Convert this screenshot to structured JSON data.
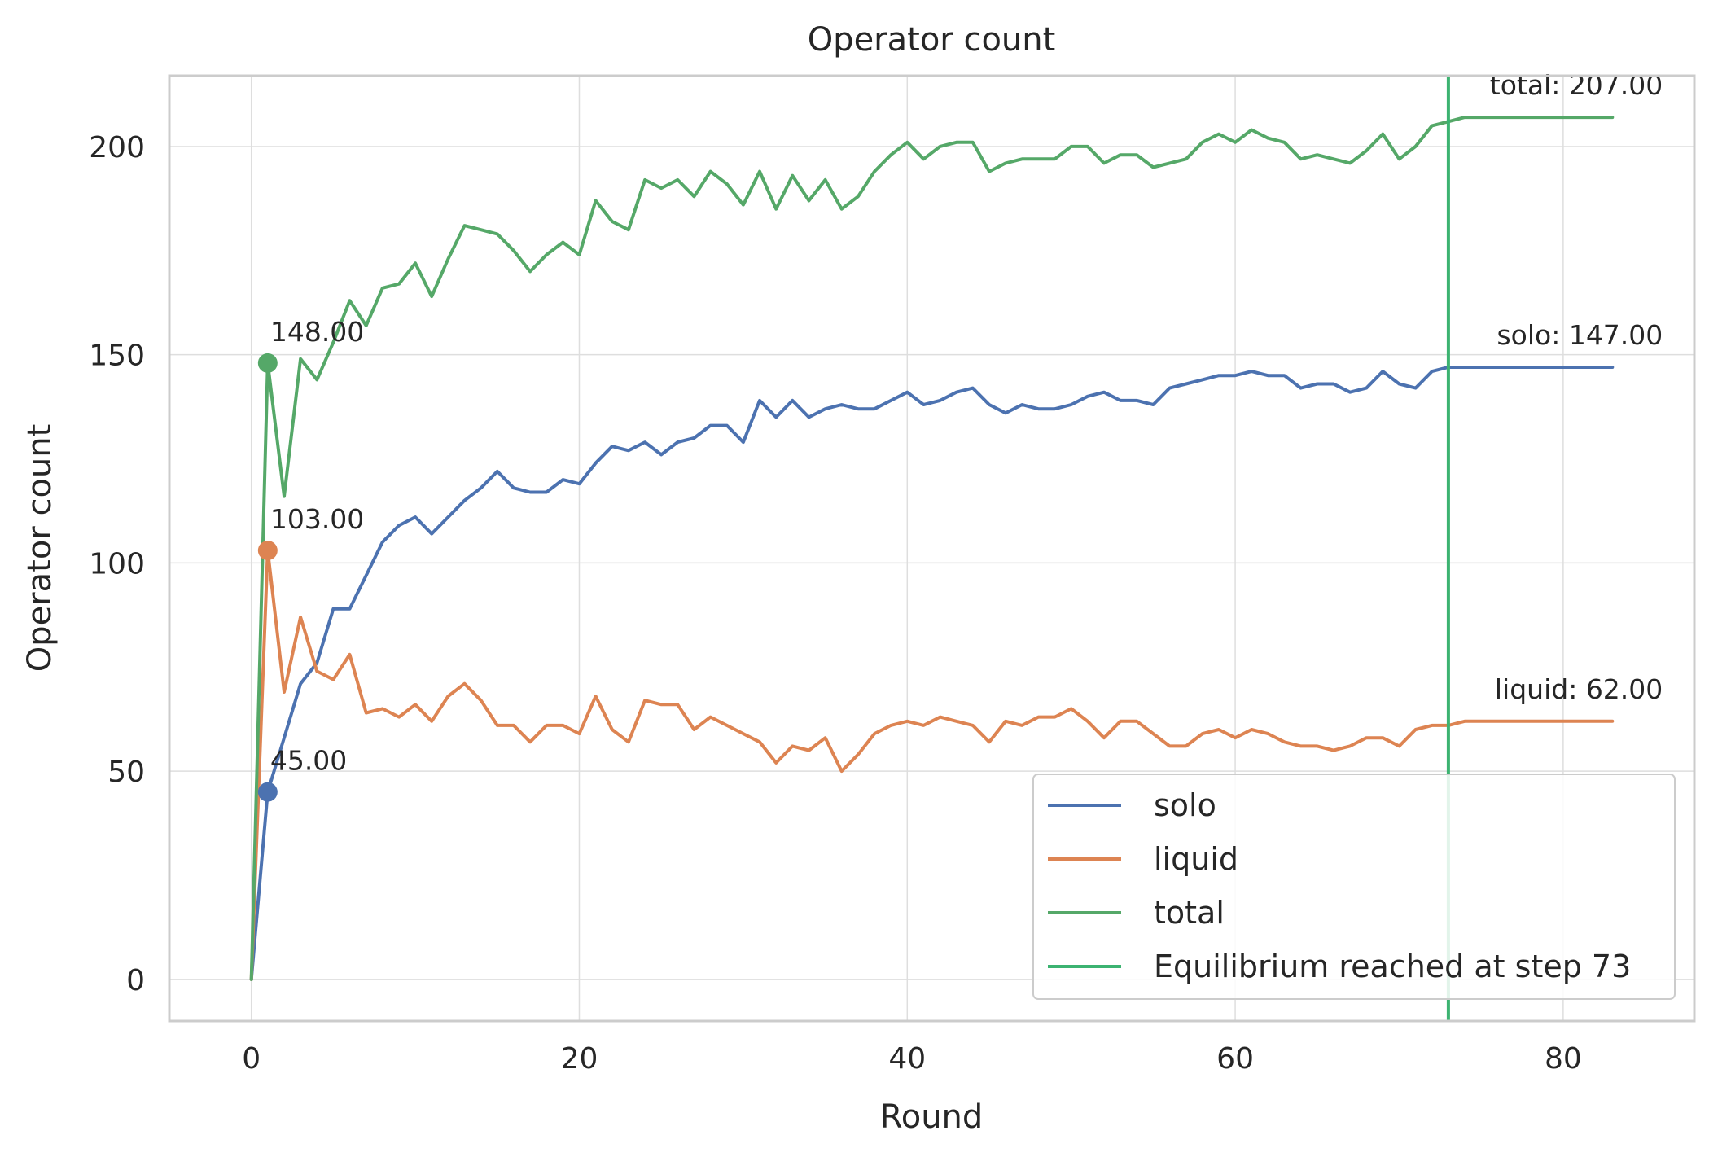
{
  "chart_data": {
    "type": "line",
    "title": "Operator count",
    "xlabel": "Round",
    "ylabel": "Operator count",
    "xlim": [
      -5,
      88
    ],
    "ylim": [
      -10,
      217
    ],
    "xticks": [
      0,
      20,
      40,
      60,
      80
    ],
    "yticks": [
      0,
      50,
      100,
      150,
      200
    ],
    "grid": true,
    "legend_position": "lower right",
    "series": [
      {
        "name": "solo",
        "color": "#4c72b0",
        "x": [
          0,
          1,
          2,
          3,
          4,
          5,
          6,
          7,
          8,
          9,
          10,
          11,
          12,
          13,
          14,
          15,
          16,
          17,
          18,
          19,
          20,
          21,
          22,
          23,
          24,
          25,
          26,
          27,
          28,
          29,
          30,
          31,
          32,
          33,
          34,
          35,
          36,
          37,
          38,
          39,
          40,
          41,
          42,
          43,
          44,
          45,
          46,
          47,
          48,
          49,
          50,
          51,
          52,
          53,
          54,
          55,
          56,
          57,
          58,
          59,
          60,
          61,
          62,
          63,
          64,
          65,
          66,
          67,
          68,
          69,
          70,
          71,
          72,
          73,
          74,
          75,
          76,
          77,
          78,
          79,
          80,
          81,
          82,
          83
        ],
        "y": [
          0,
          45,
          58,
          71,
          76,
          89,
          89,
          97,
          105,
          109,
          111,
          107,
          111,
          115,
          118,
          122,
          118,
          117,
          117,
          120,
          119,
          124,
          128,
          127,
          129,
          126,
          129,
          130,
          133,
          133,
          129,
          139,
          135,
          139,
          135,
          137,
          138,
          137,
          137,
          139,
          141,
          138,
          139,
          141,
          142,
          138,
          136,
          138,
          137,
          137,
          138,
          140,
          141,
          139,
          139,
          138,
          142,
          143,
          144,
          145,
          145,
          146,
          145,
          145,
          142,
          143,
          143,
          141,
          142,
          146,
          143,
          142,
          146,
          147,
          147,
          147,
          147,
          147,
          147,
          147,
          147,
          147,
          147,
          147
        ]
      },
      {
        "name": "liquid",
        "color": "#dd8452",
        "x": [
          0,
          1,
          2,
          3,
          4,
          5,
          6,
          7,
          8,
          9,
          10,
          11,
          12,
          13,
          14,
          15,
          16,
          17,
          18,
          19,
          20,
          21,
          22,
          23,
          24,
          25,
          26,
          27,
          28,
          29,
          30,
          31,
          32,
          33,
          34,
          35,
          36,
          37,
          38,
          39,
          40,
          41,
          42,
          43,
          44,
          45,
          46,
          47,
          48,
          49,
          50,
          51,
          52,
          53,
          54,
          55,
          56,
          57,
          58,
          59,
          60,
          61,
          62,
          63,
          64,
          65,
          66,
          67,
          68,
          69,
          70,
          71,
          72,
          73,
          74,
          75,
          76,
          77,
          78,
          79,
          80,
          81,
          82,
          83
        ],
        "y": [
          0,
          103,
          69,
          87,
          74,
          72,
          78,
          64,
          65,
          63,
          66,
          62,
          68,
          71,
          67,
          61,
          61,
          57,
          61,
          61,
          59,
          68,
          60,
          57,
          67,
          66,
          66,
          60,
          63,
          61,
          59,
          57,
          52,
          56,
          55,
          58,
          50,
          54,
          59,
          61,
          62,
          61,
          63,
          62,
          61,
          57,
          62,
          61,
          63,
          63,
          65,
          62,
          58,
          62,
          62,
          59,
          56,
          56,
          59,
          60,
          58,
          60,
          59,
          57,
          56,
          56,
          55,
          56,
          58,
          58,
          56,
          60,
          61,
          61,
          62,
          62,
          62,
          62,
          62,
          62,
          62,
          62,
          62,
          62
        ]
      },
      {
        "name": "total",
        "color": "#55a868",
        "x": [
          0,
          1,
          2,
          3,
          4,
          5,
          6,
          7,
          8,
          9,
          10,
          11,
          12,
          13,
          14,
          15,
          16,
          17,
          18,
          19,
          20,
          21,
          22,
          23,
          24,
          25,
          26,
          27,
          28,
          29,
          30,
          31,
          32,
          33,
          34,
          35,
          36,
          37,
          38,
          39,
          40,
          41,
          42,
          43,
          44,
          45,
          46,
          47,
          48,
          49,
          50,
          51,
          52,
          53,
          54,
          55,
          56,
          57,
          58,
          59,
          60,
          61,
          62,
          63,
          64,
          65,
          66,
          67,
          68,
          69,
          70,
          71,
          72,
          73,
          74,
          75,
          76,
          77,
          78,
          79,
          80,
          81,
          82,
          83
        ],
        "y": [
          0,
          148,
          116,
          149,
          144,
          153,
          163,
          157,
          166,
          167,
          172,
          164,
          173,
          181,
          180,
          179,
          175,
          170,
          174,
          177,
          174,
          187,
          182,
          180,
          192,
          190,
          192,
          188,
          194,
          191,
          186,
          194,
          185,
          193,
          187,
          192,
          185,
          188,
          194,
          198,
          201,
          197,
          200,
          201,
          201,
          194,
          196,
          197,
          197,
          197,
          200,
          200,
          196,
          198,
          198,
          195,
          196,
          197,
          201,
          203,
          201,
          204,
          202,
          201,
          197,
          198,
          197,
          196,
          199,
          203,
          197,
          200,
          205,
          206,
          207,
          207,
          207,
          207,
          207,
          207,
          207,
          207,
          207,
          207
        ]
      }
    ],
    "equilibrium": {
      "label": "Equilibrium reached at step 73",
      "x": 73,
      "color": "#3cb371"
    },
    "start_annotations": [
      {
        "series": "solo",
        "x": 1,
        "y": 45,
        "text": "45.00"
      },
      {
        "series": "liquid",
        "x": 1,
        "y": 103,
        "text": "103.00"
      },
      {
        "series": "total",
        "x": 1,
        "y": 148,
        "text": "148.00"
      }
    ],
    "end_annotations": [
      {
        "series": "total",
        "x": 83,
        "y": 207,
        "text": "total: 207.00"
      },
      {
        "series": "solo",
        "x": 83,
        "y": 147,
        "text": "solo: 147.00"
      },
      {
        "series": "liquid",
        "x": 83,
        "y": 62,
        "text": "liquid: 62.00"
      }
    ],
    "legend": [
      {
        "label": "solo",
        "color": "#4c72b0"
      },
      {
        "label": "liquid",
        "color": "#dd8452"
      },
      {
        "label": "total",
        "color": "#55a868"
      },
      {
        "label": "Equilibrium reached at step 73",
        "color": "#3cb371"
      }
    ]
  }
}
